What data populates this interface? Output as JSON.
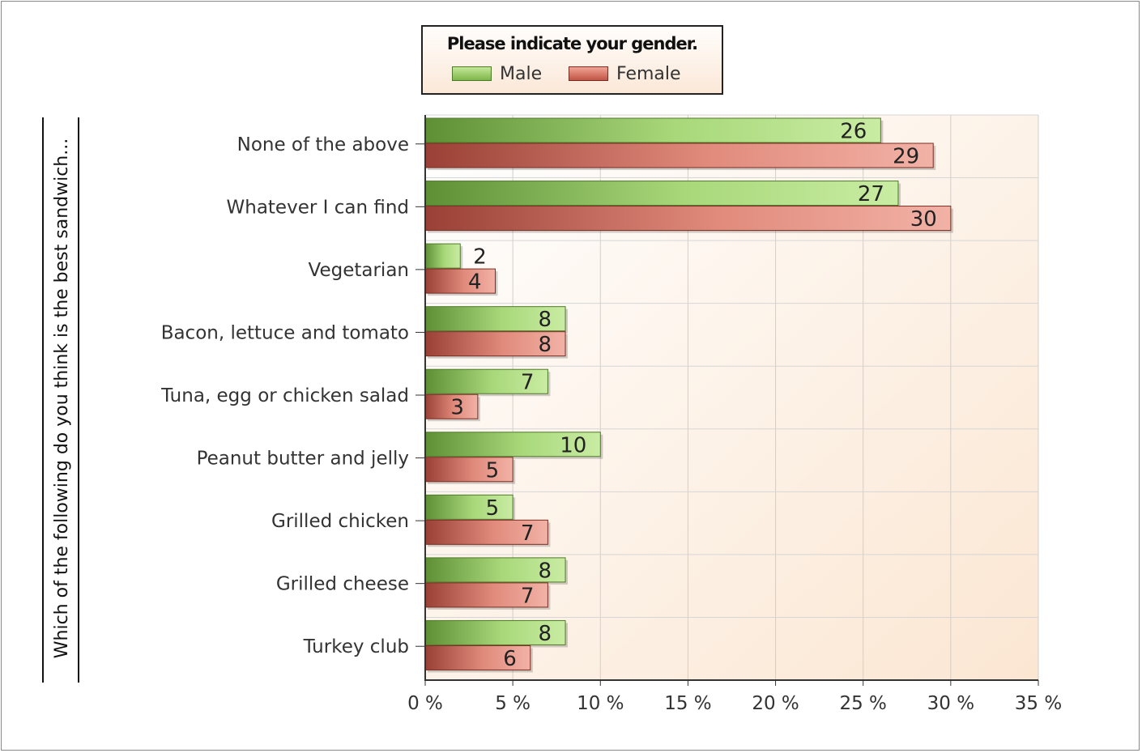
{
  "chart_data": {
    "type": "bar",
    "orientation": "horizontal",
    "legend_title": "Please indicate your gender.",
    "legend_placement": "top",
    "ylabel": "Which of the following do you think is the best sandwich...",
    "xlabel": "",
    "categories": [
      "None of the above",
      "Whatever I can find",
      "Vegetarian",
      "Bacon, lettuce and tomato",
      "Tuna, egg or chicken salad",
      "Peanut butter and jelly",
      "Grilled chicken",
      "Grilled cheese",
      "Turkey club"
    ],
    "series": [
      {
        "name": "Male",
        "color": "#8cc65a",
        "values": [
          26,
          27,
          2,
          8,
          7,
          10,
          5,
          8,
          8
        ]
      },
      {
        "name": "Female",
        "color": "#d0685a",
        "values": [
          29,
          30,
          4,
          8,
          3,
          5,
          7,
          7,
          6
        ]
      }
    ],
    "xlim": [
      0,
      35
    ],
    "xticks": [
      0,
      5,
      10,
      15,
      20,
      25,
      30,
      35
    ],
    "xtick_labels": [
      "0 %",
      "5 %",
      "10 %",
      "15 %",
      "20 %",
      "25 %",
      "30 %",
      "35 %"
    ],
    "grid": true
  }
}
